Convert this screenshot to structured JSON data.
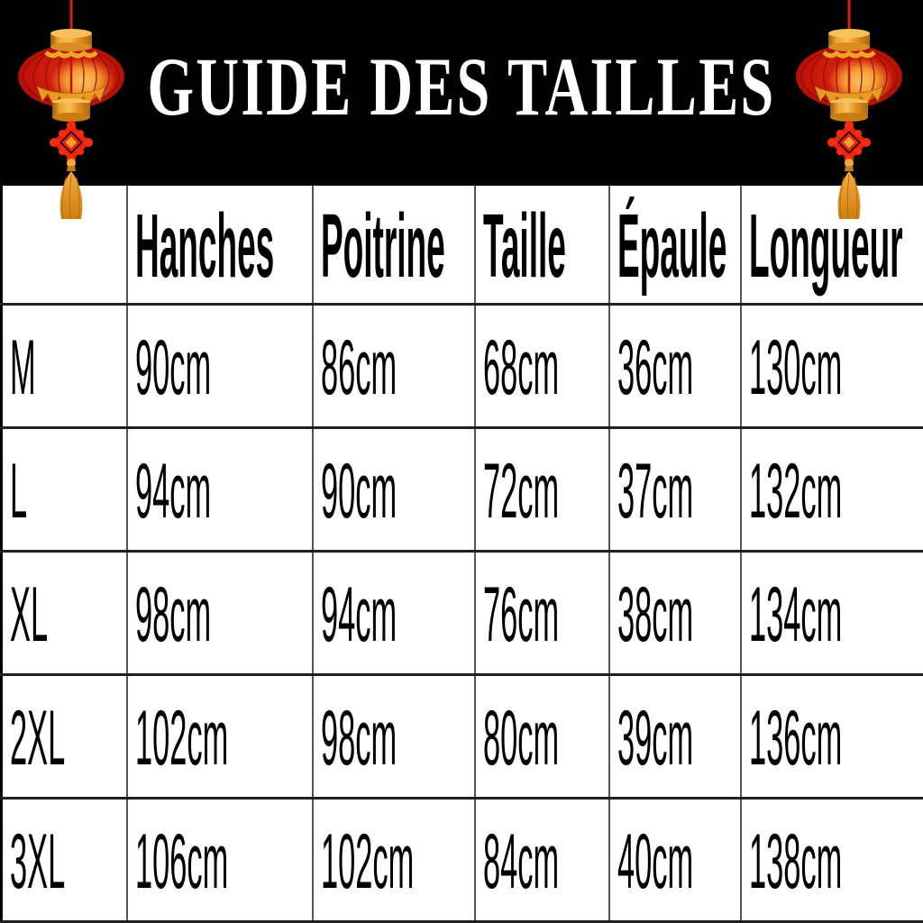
{
  "banner": {
    "title": "GUIDE DES TAILLES",
    "bg_color": "#000000",
    "title_color": "#ffffff"
  },
  "decorations": {
    "left": "chinese-lantern-icon",
    "right": "chinese-lantern-icon",
    "lantern_colors": {
      "body_red": "#c41408",
      "glow_orange": "#f49b33",
      "gold": "#e8941f",
      "knot_red": "#ea230d",
      "string_red": "#d3230f"
    }
  },
  "chart_data": {
    "type": "table",
    "title": "GUIDE DES TAILLES",
    "columns": [
      "",
      "Hanches",
      "Poitrine",
      "Taille",
      "Épaule",
      "Longueur"
    ],
    "rows": [
      [
        "M",
        "90cm",
        "86cm",
        "68cm",
        "36cm",
        "130cm"
      ],
      [
        "L",
        "94cm",
        "90cm",
        "72cm",
        "37cm",
        "132cm"
      ],
      [
        "XL",
        "98cm",
        "94cm",
        "76cm",
        "38cm",
        "134cm"
      ],
      [
        "2XL",
        "102cm",
        "98cm",
        "80cm",
        "39cm",
        "136cm"
      ],
      [
        "3XL",
        "106cm",
        "102cm",
        "84cm",
        "40cm",
        "138cm"
      ]
    ]
  }
}
